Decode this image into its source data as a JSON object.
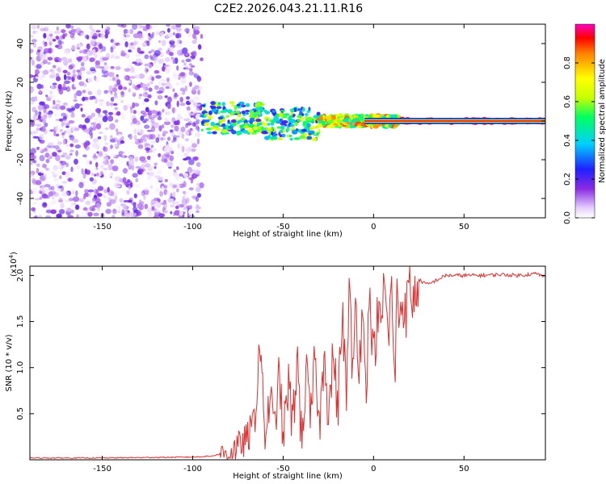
{
  "title": "C2E2.2026.043.21.11.R16",
  "colors": {
    "line": "#e03030",
    "frame": "#000000",
    "background": "#ffffff"
  },
  "chart_data": [
    {
      "type": "heatmap",
      "name": "spectrogram",
      "xlabel": "Height of straight line (km)",
      "ylabel": "Frequency (Hz)",
      "xlim": [
        -190,
        95
      ],
      "ylim": [
        -50,
        50
      ],
      "xticks": [
        "-150",
        "-100",
        "-50",
        "0",
        "50"
      ],
      "yticks": [
        "-40",
        "-20",
        "0",
        "20",
        "40"
      ],
      "xtick_values": [
        -150,
        -100,
        -50,
        0,
        50
      ],
      "ytick_values": [
        -40,
        -20,
        0,
        20,
        40
      ],
      "colorbar": {
        "label": "Normalized spectral amplitude",
        "range": [
          0,
          1
        ],
        "ticks": [
          "0.0",
          "0.2",
          "0.4",
          "0.6",
          "0.8"
        ],
        "tick_values": [
          0,
          0.2,
          0.4,
          0.6,
          0.8
        ]
      },
      "regions": [
        {
          "x": [
            -190,
            -95
          ],
          "description": "broadband noise",
          "amplitude": [
            0.0,
            0.2
          ],
          "freq_spread": 50
        },
        {
          "x": [
            -95,
            -30
          ],
          "description": "band emerging",
          "amplitude": [
            0.2,
            0.7
          ],
          "freq_spread": 8
        },
        {
          "x": [
            -30,
            15
          ],
          "description": "narrowing band",
          "amplitude": [
            0.4,
            0.9
          ],
          "freq_spread": 3
        },
        {
          "x": [
            15,
            95
          ],
          "description": "steady narrow line",
          "amplitude": [
            0.9,
            1.0
          ],
          "freq_spread": 1
        }
      ]
    },
    {
      "type": "line",
      "name": "snr",
      "xlabel": "Height of straight line (km)",
      "ylabel": "SNR (10 * v/v)",
      "multiplier": "(x10",
      "multiplier_exp": "4",
      "multiplier_close": ")",
      "xlim": [
        -190,
        95
      ],
      "ylim": [
        0,
        2.1
      ],
      "xticks": [
        "-150",
        "-100",
        "-50",
        "0",
        "50"
      ],
      "yticks": [
        "0.5",
        "1.0",
        "1.5",
        "2.0"
      ],
      "xtick_values": [
        -150,
        -100,
        -50,
        0,
        50
      ],
      "ytick_values": [
        0.5,
        1.0,
        1.5,
        2.0
      ],
      "series": [
        {
          "name": "SNR",
          "x": [
            -190,
            -150,
            -100,
            -90,
            -85,
            -80,
            -75,
            -70,
            -67,
            -65,
            -63,
            -60,
            -57,
            -55,
            -52,
            -50,
            -47,
            -45,
            -42,
            -40,
            -37,
            -35,
            -32,
            -30,
            -27,
            -25,
            -22,
            -20,
            -17,
            -15,
            -13,
            -12,
            -10,
            -8,
            -6,
            -4,
            -2,
            0,
            2,
            4,
            6,
            8,
            10,
            12,
            13,
            14,
            16,
            18,
            20,
            22,
            25,
            30,
            40,
            50,
            60,
            70,
            80,
            90,
            95
          ],
          "values": [
            0.02,
            0.02,
            0.03,
            0.04,
            0.06,
            0.08,
            0.14,
            0.22,
            0.35,
            0.55,
            1.35,
            0.25,
            0.7,
            0.3,
            0.95,
            0.2,
            0.85,
            0.35,
            1.1,
            0.25,
            0.9,
            0.4,
            1.15,
            0.3,
            1.3,
            0.45,
            1.2,
            0.5,
            1.6,
            0.6,
            2.1,
            0.7,
            1.7,
            1.1,
            1.55,
            0.9,
            1.8,
            1.05,
            1.55,
            1.4,
            1.95,
            1.3,
            1.85,
            0.7,
            2.1,
            1.5,
            1.75,
            1.6,
            1.9,
            1.7,
            1.95,
            1.9,
            2.0,
            2.0,
            2.0,
            2.01,
            2.0,
            2.02,
            1.98
          ]
        }
      ]
    }
  ]
}
